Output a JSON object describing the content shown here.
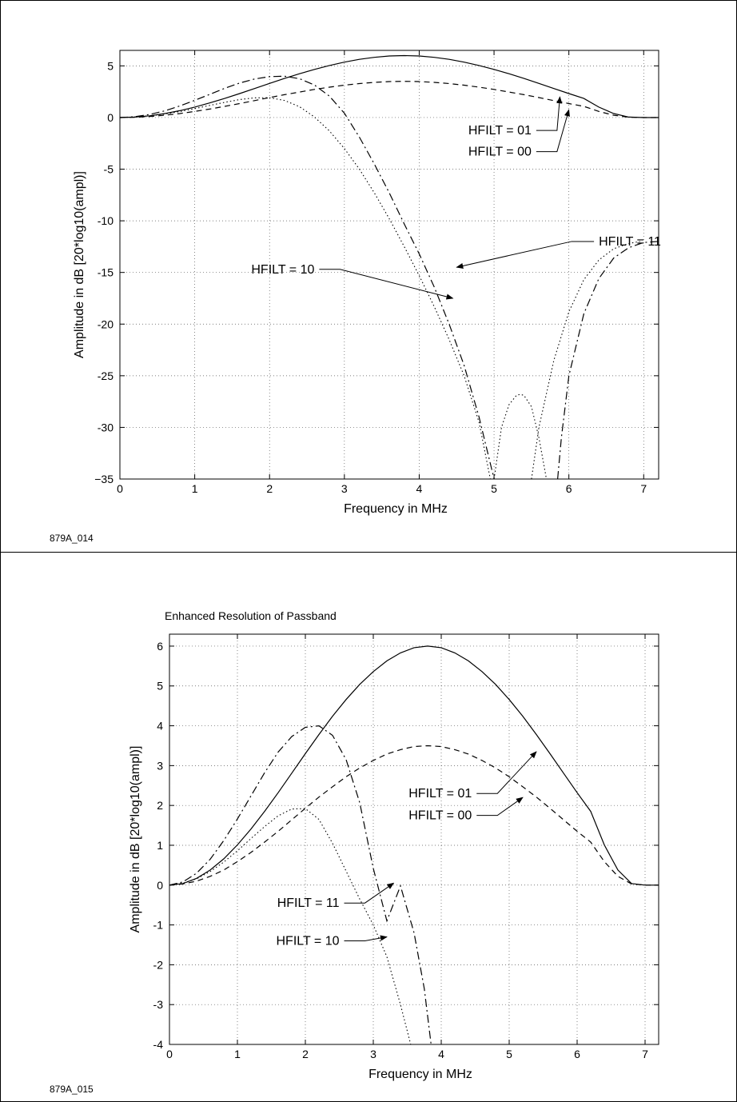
{
  "chart_data": [
    {
      "type": "line",
      "title": "",
      "figure_id": "879A_014",
      "xlabel": "Frequency in MHz",
      "ylabel": "Amplitude in dB [20*log10(ampl)]",
      "xlim": [
        0,
        7.2
      ],
      "ylim": [
        -35,
        6.5
      ],
      "xticks": [
        0,
        1,
        2,
        3,
        4,
        5,
        6,
        7
      ],
      "yticks": [
        5,
        0,
        -5,
        -10,
        -15,
        -20,
        -25,
        -30,
        -35
      ],
      "ytick_labels": [
        "5",
        "0",
        "-5",
        "-10",
        "-15",
        "-20",
        "-25",
        "-30",
        "−35"
      ],
      "grid": true,
      "series": [
        {
          "name": "HFILT = 01",
          "style": "solid",
          "x": [
            0,
            0.2,
            0.4,
            0.6,
            0.8,
            1.0,
            1.2,
            1.4,
            1.6,
            1.8,
            2.0,
            2.2,
            2.4,
            2.6,
            2.8,
            3.0,
            3.2,
            3.4,
            3.6,
            3.8,
            4.0,
            4.2,
            4.4,
            4.6,
            4.8,
            5.0,
            5.2,
            5.4,
            5.6,
            5.8,
            6.0,
            6.2,
            6.4,
            6.6,
            6.8,
            7.0,
            7.2
          ],
          "y": [
            0,
            0.04,
            0.17,
            0.38,
            0.66,
            1.01,
            1.41,
            1.85,
            2.32,
            2.81,
            3.3,
            3.78,
            4.24,
            4.66,
            5.04,
            5.36,
            5.63,
            5.83,
            5.96,
            6.0,
            5.96,
            5.83,
            5.63,
            5.36,
            5.04,
            4.66,
            4.24,
            3.78,
            3.3,
            2.81,
            2.32,
            1.85,
            1.01,
            0.38,
            0.04,
            0,
            0
          ]
        },
        {
          "name": "HFILT = 00",
          "style": "dashed",
          "x": [
            0,
            0.2,
            0.4,
            0.6,
            0.8,
            1.0,
            1.2,
            1.4,
            1.6,
            1.8,
            2.0,
            2.2,
            2.4,
            2.6,
            2.8,
            3.0,
            3.2,
            3.4,
            3.6,
            3.8,
            4.0,
            4.2,
            4.4,
            4.6,
            4.8,
            5.0,
            5.2,
            5.4,
            5.6,
            5.8,
            6.0,
            6.2,
            6.4,
            6.6,
            6.8,
            7.0,
            7.2
          ],
          "y": [
            0,
            0.03,
            0.1,
            0.22,
            0.38,
            0.59,
            0.82,
            1.08,
            1.35,
            1.64,
            1.93,
            2.21,
            2.47,
            2.72,
            2.94,
            3.13,
            3.29,
            3.4,
            3.48,
            3.5,
            3.48,
            3.4,
            3.29,
            3.13,
            2.94,
            2.72,
            2.47,
            2.21,
            1.93,
            1.64,
            1.35,
            1.08,
            0.59,
            0.22,
            0.03,
            0,
            0
          ]
        },
        {
          "name": "HFILT = 11",
          "style": "dashdot",
          "segments": [
            {
              "x": [
                0,
                0.2,
                0.4,
                0.6,
                0.8,
                1.0,
                1.2,
                1.4,
                1.6,
                1.8,
                2.0,
                2.2,
                2.4,
                2.6,
                2.8,
                3.0,
                3.2,
                3.4,
                3.6,
                3.8,
                4.0,
                4.2,
                4.4,
                4.6,
                4.8,
                4.9,
                5.0
              ],
              "y": [
                0,
                0.08,
                0.3,
                0.65,
                1.12,
                1.66,
                2.24,
                2.82,
                3.34,
                3.73,
                3.96,
                4.0,
                3.76,
                3.15,
                2.07,
                0.42,
                -1.9,
                -4.5,
                -7.3,
                -10.3,
                -13.2,
                -16.4,
                -20.0,
                -24.0,
                -29.0,
                -32.0,
                -35.0
              ]
            },
            {
              "x": [
                5.85,
                5.9,
                6.0,
                6.2,
                6.4,
                6.6,
                6.8,
                7.0,
                7.2
              ],
              "y": [
                -35.0,
                -31.0,
                -25.0,
                -19.0,
                -15.6,
                -13.6,
                -12.6,
                -12.1,
                -12.0
              ]
            }
          ]
        },
        {
          "name": "HFILT = 10",
          "style": "dotted",
          "segments": [
            {
              "x": [
                0,
                0.2,
                0.4,
                0.6,
                0.8,
                1.0,
                1.2,
                1.4,
                1.6,
                1.8,
                2.0,
                2.2,
                2.4,
                2.6,
                2.8,
                3.0,
                3.2,
                3.4,
                3.6,
                3.8,
                4.0,
                4.2,
                4.4,
                4.6,
                4.8,
                4.95
              ],
              "y": [
                0,
                0.05,
                0.16,
                0.34,
                0.58,
                0.86,
                1.17,
                1.47,
                1.74,
                1.91,
                1.92,
                1.65,
                1.05,
                0.05,
                -1.3,
                -3.0,
                -5.0,
                -7.3,
                -9.8,
                -12.5,
                -15.3,
                -18.3,
                -21.5,
                -25.0,
                -29.5,
                -35.0
              ]
            },
            {
              "x": [
                5.0,
                5.1,
                5.2,
                5.3,
                5.35,
                5.4,
                5.5,
                5.6,
                5.7
              ],
              "y": [
                -35.0,
                -30.0,
                -27.8,
                -26.9,
                -26.8,
                -26.9,
                -28.0,
                -31.0,
                -35.0
              ]
            },
            {
              "x": [
                5.5,
                5.6,
                5.8,
                6.0,
                6.2,
                6.4,
                6.6,
                6.8,
                6.95
              ],
              "y": [
                -35.0,
                -30.0,
                -23.5,
                -18.8,
                -15.7,
                -13.8,
                -12.7,
                -12.2,
                -12.0
              ]
            }
          ]
        }
      ],
      "annotations": [
        {
          "text": "HFILT = 01",
          "target": [
            5.88,
            2.0
          ],
          "label_at": [
            5.5,
            -1.25
          ]
        },
        {
          "text": "HFILT = 00",
          "target": [
            6.0,
            0.75
          ],
          "label_at": [
            5.5,
            -3.3
          ]
        },
        {
          "text": "HFILT = 11",
          "target": [
            4.5,
            -14.5
          ],
          "label_at": [
            6.4,
            -12.0
          ]
        },
        {
          "text": "HFILT = 10",
          "target": [
            4.45,
            -17.5
          ],
          "label_at": [
            2.6,
            -14.7
          ]
        }
      ]
    },
    {
      "type": "line",
      "title": "Enhanced Resolution of Passband",
      "figure_id": "879A_015",
      "xlabel": "Frequency in MHz",
      "ylabel": "Amplitude in dB [20*log10(ampl)]",
      "xlim": [
        0,
        7.2
      ],
      "ylim": [
        -4,
        6.3
      ],
      "xticks": [
        0,
        1,
        2,
        3,
        4,
        5,
        6,
        7
      ],
      "yticks": [
        6,
        5,
        4,
        3,
        2,
        1,
        0,
        -1,
        -2,
        -3,
        -4
      ],
      "ytick_labels": [
        "6",
        "5",
        "4",
        "3",
        "2",
        "1",
        "0",
        "-1",
        "-2",
        "-3",
        "-4"
      ],
      "grid": true,
      "series": [
        {
          "name": "HFILT = 01",
          "style": "solid",
          "x": [
            0,
            0.2,
            0.4,
            0.6,
            0.8,
            1.0,
            1.2,
            1.4,
            1.6,
            1.8,
            2.0,
            2.2,
            2.4,
            2.6,
            2.8,
            3.0,
            3.2,
            3.4,
            3.6,
            3.8,
            4.0,
            4.2,
            4.4,
            4.6,
            4.8,
            5.0,
            5.2,
            5.4,
            5.6,
            5.8,
            6.0,
            6.2,
            6.4,
            6.6,
            6.8,
            7.0,
            7.2
          ],
          "y": [
            0,
            0.04,
            0.17,
            0.38,
            0.66,
            1.01,
            1.41,
            1.85,
            2.32,
            2.81,
            3.3,
            3.78,
            4.24,
            4.66,
            5.04,
            5.36,
            5.63,
            5.83,
            5.96,
            6.0,
            5.96,
            5.83,
            5.63,
            5.36,
            5.04,
            4.66,
            4.24,
            3.78,
            3.3,
            2.81,
            2.32,
            1.85,
            1.01,
            0.38,
            0.04,
            0,
            0
          ]
        },
        {
          "name": "HFILT = 00",
          "style": "dashed",
          "x": [
            0,
            0.2,
            0.4,
            0.6,
            0.8,
            1.0,
            1.2,
            1.4,
            1.6,
            1.8,
            2.0,
            2.2,
            2.4,
            2.6,
            2.8,
            3.0,
            3.2,
            3.4,
            3.6,
            3.8,
            4.0,
            4.2,
            4.4,
            4.6,
            4.8,
            5.0,
            5.2,
            5.4,
            5.6,
            5.8,
            6.0,
            6.2,
            6.4,
            6.6,
            6.8,
            7.0,
            7.2
          ],
          "y": [
            0,
            0.03,
            0.1,
            0.22,
            0.38,
            0.59,
            0.82,
            1.08,
            1.35,
            1.64,
            1.93,
            2.21,
            2.47,
            2.72,
            2.94,
            3.13,
            3.29,
            3.4,
            3.48,
            3.5,
            3.48,
            3.4,
            3.29,
            3.13,
            2.94,
            2.72,
            2.47,
            2.21,
            1.93,
            1.64,
            1.35,
            1.08,
            0.59,
            0.22,
            0.03,
            0,
            0
          ]
        },
        {
          "name": "HFILT = 11",
          "style": "dashdot",
          "x": [
            0,
            0.2,
            0.4,
            0.6,
            0.8,
            1.0,
            1.2,
            1.4,
            1.6,
            1.8,
            2.0,
            2.2,
            2.4,
            2.6,
            2.8,
            3.0,
            3.2,
            3.4,
            3.6,
            3.75,
            3.85
          ],
          "y": [
            0,
            0.08,
            0.3,
            0.65,
            1.12,
            1.66,
            2.24,
            2.82,
            3.34,
            3.73,
            3.96,
            4.0,
            3.76,
            3.15,
            2.07,
            0.42,
            -0.9,
            -0.02,
            -1.2,
            -2.6,
            -4.0
          ]
        },
        {
          "name": "HFILT = 10",
          "style": "dotted",
          "x": [
            0,
            0.2,
            0.4,
            0.6,
            0.8,
            1.0,
            1.2,
            1.4,
            1.6,
            1.8,
            2.0,
            2.2,
            2.4,
            2.6,
            2.8,
            3.0,
            3.2,
            3.4,
            3.55
          ],
          "y": [
            0,
            0.05,
            0.16,
            0.34,
            0.58,
            0.86,
            1.17,
            1.47,
            1.74,
            1.91,
            1.92,
            1.65,
            1.05,
            0.35,
            -0.35,
            -1.0,
            -1.8,
            -3.0,
            -4.0
          ]
        }
      ],
      "annotations": [
        {
          "text": "HFILT = 01",
          "target": [
            5.4,
            3.35
          ],
          "label_at": [
            4.45,
            2.3
          ]
        },
        {
          "text": "HFILT = 00",
          "target": [
            5.2,
            2.2
          ],
          "label_at": [
            4.45,
            1.75
          ]
        },
        {
          "text": "HFILT = 11",
          "target": [
            3.3,
            0.05
          ],
          "label_at": [
            2.5,
            -0.45
          ]
        },
        {
          "text": "HFILT = 10",
          "target": [
            3.2,
            -1.3
          ],
          "label_at": [
            2.5,
            -1.4
          ]
        }
      ]
    }
  ]
}
